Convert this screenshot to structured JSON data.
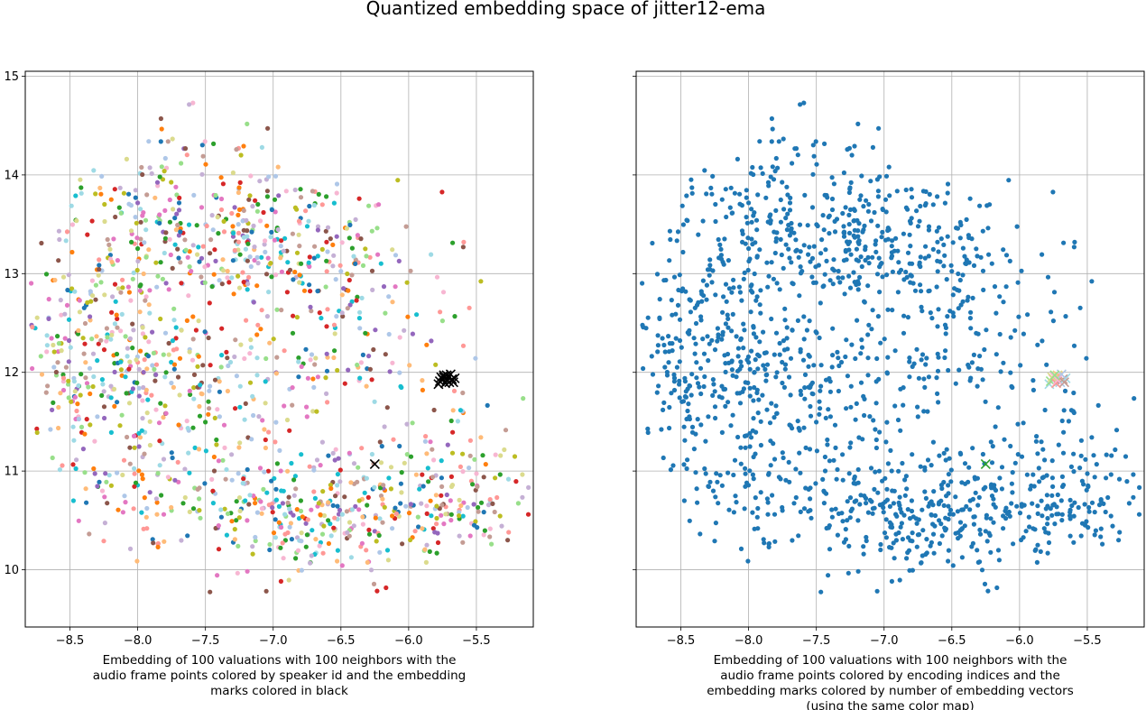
{
  "figure": {
    "title": "Quantized embedding space of jitter12-ema"
  },
  "chart_data": [
    {
      "type": "scatter",
      "caption_lines": [
        "Embedding of 100 valuations with 100 neighbors with the",
        "audio frame points colored by speaker id and the embedding",
        "marks colored in black"
      ],
      "xlim": [
        -8.83,
        -5.08
      ],
      "ylim": [
        9.42,
        15.05
      ],
      "x_ticks": [
        -8.5,
        -8.0,
        -7.5,
        -7.0,
        -6.5,
        -6.0,
        -5.5
      ],
      "x_tick_labels": [
        "−8.5",
        "−8.0",
        "−7.5",
        "−7.0",
        "−6.5",
        "−6.0",
        "−5.5"
      ],
      "y_ticks": [
        10,
        11,
        12,
        13,
        14,
        15
      ],
      "y_tick_labels": [
        "10",
        "11",
        "12",
        "13",
        "14",
        "15"
      ],
      "grid": true,
      "point_coloring": "speaker id (tab20 palette)",
      "point_palette": [
        "#1f77b4",
        "#aec7e8",
        "#ff7f0e",
        "#ffbb78",
        "#2ca02c",
        "#98df8a",
        "#d62728",
        "#ff9896",
        "#9467bd",
        "#c5b0d5",
        "#8c564b",
        "#c49c94",
        "#e377c2",
        "#f7b6d2",
        "#bcbd22",
        "#dbdb8d",
        "#17becf",
        "#9edae5"
      ],
      "embedding_marks": {
        "marker": "x",
        "color": "#000000",
        "points": [
          [
            -5.78,
            11.88
          ],
          [
            -5.75,
            11.93
          ],
          [
            -5.72,
            11.97
          ],
          [
            -5.7,
            11.9
          ],
          [
            -5.74,
            11.95
          ],
          [
            -5.68,
            11.93
          ],
          [
            -5.77,
            11.91
          ],
          [
            -5.71,
            11.96
          ],
          [
            -5.66,
            11.94
          ],
          [
            -5.73,
            11.89
          ],
          [
            -5.76,
            11.95
          ],
          [
            -5.69,
            11.98
          ],
          [
            -5.72,
            11.92
          ],
          [
            -5.67,
            11.9
          ],
          [
            -5.74,
            11.97
          ],
          [
            -6.25,
            11.07
          ]
        ]
      }
    },
    {
      "type": "scatter",
      "caption_lines": [
        "Embedding of 100 valuations with 100 neighbors with the",
        "audio frame points colored by encoding indices and the",
        "embedding marks colored by number of embedding vectors",
        "(using the same color map)"
      ],
      "xlim": [
        -8.83,
        -5.08
      ],
      "ylim": [
        9.42,
        15.05
      ],
      "x_ticks": [
        -8.5,
        -8.0,
        -7.5,
        -7.0,
        -6.5,
        -6.0,
        -5.5
      ],
      "x_tick_labels": [
        "−8.5",
        "−8.0",
        "−7.5",
        "−7.0",
        "−6.5",
        "−6.0",
        "−5.5"
      ],
      "y_ticks": [
        10,
        11,
        12,
        13,
        14,
        15
      ],
      "grid": true,
      "point_color": "#1f77b4",
      "embedding_marks": {
        "marker": "x",
        "colors": [
          "#9edae5",
          "#ff9896",
          "#dbdb8d",
          "#aec7e8",
          "#f7b6d2",
          "#c49c94",
          "#98df8a",
          "#ffbb78"
        ],
        "points": [
          [
            -5.78,
            11.88
          ],
          [
            -5.75,
            11.93
          ],
          [
            -5.72,
            11.97
          ],
          [
            -5.7,
            11.9
          ],
          [
            -5.74,
            11.95
          ],
          [
            -5.68,
            11.93
          ],
          [
            -5.77,
            11.91
          ],
          [
            -5.71,
            11.96
          ],
          [
            -5.66,
            11.94
          ],
          [
            -5.73,
            11.89
          ],
          [
            -5.76,
            11.95
          ],
          [
            -5.69,
            11.98
          ],
          [
            -5.72,
            11.92
          ],
          [
            -5.67,
            11.9
          ],
          [
            -5.74,
            11.97
          ],
          [
            -6.25,
            11.07
          ]
        ],
        "special_color": "#2ca02c"
      }
    }
  ]
}
